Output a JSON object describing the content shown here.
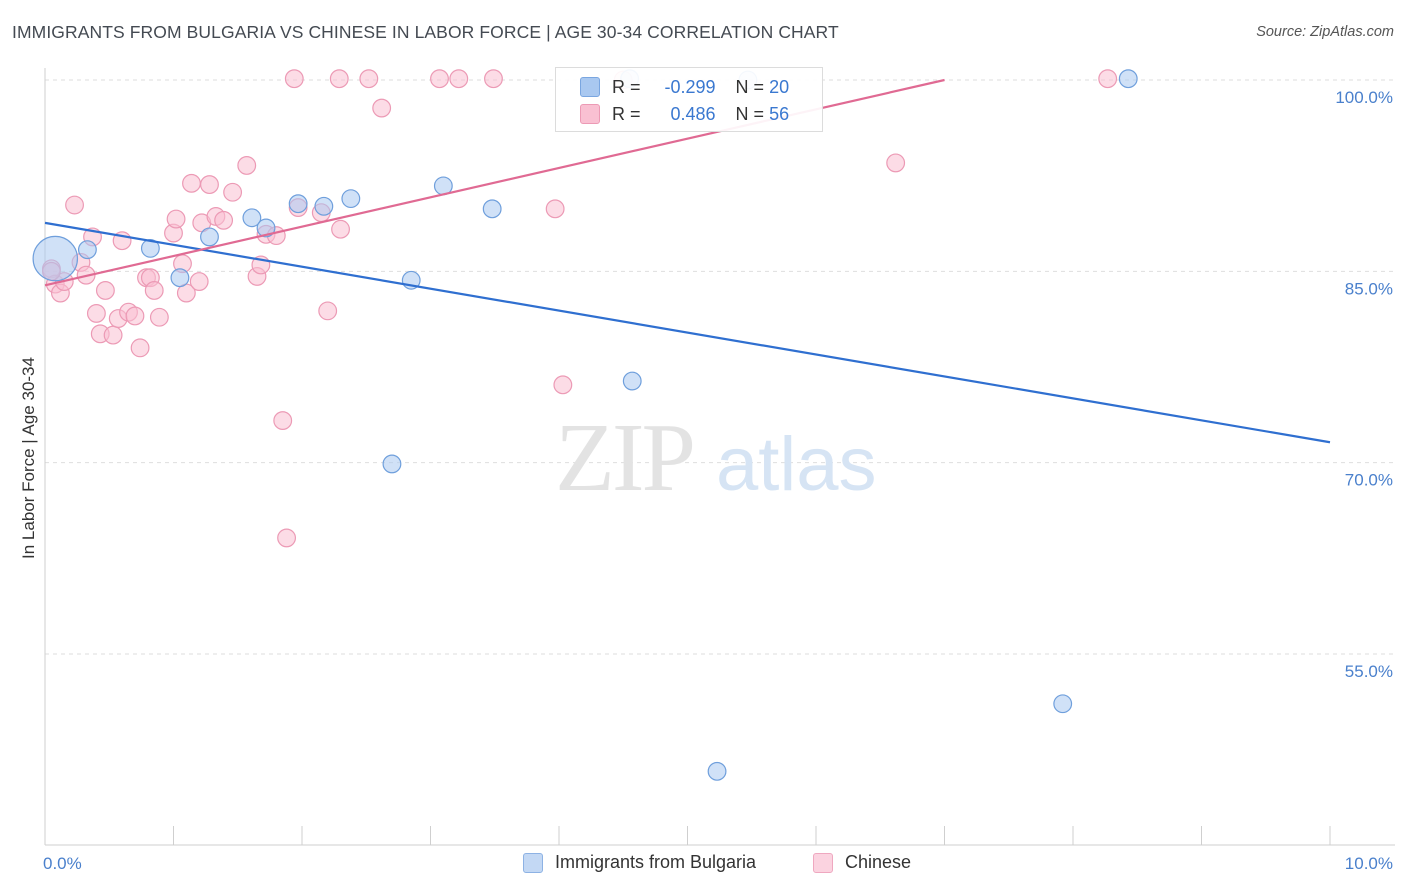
{
  "title": "IMMIGRANTS FROM BULGARIA VS CHINESE IN LABOR FORCE | AGE 30-34 CORRELATION CHART",
  "source": "Source: ZipAtlas.com",
  "watermark": {
    "zip": "ZIP",
    "atlas": "atlas"
  },
  "legend": {
    "rows": [
      {
        "r_label": "R =",
        "r_value": "-0.299",
        "n_label": "N =",
        "n_value": "20",
        "color": "#a9c8f0",
        "border": "#7aa6e0"
      },
      {
        "r_label": "R =",
        "r_value": "0.486",
        "n_label": "N =",
        "n_value": "56",
        "color": "#f9c0d2",
        "border": "#ec9ab5"
      }
    ]
  },
  "bottom_legend": [
    "Immigrants from Bulgaria",
    "Chinese"
  ],
  "chart_data": {
    "type": "scatter",
    "title": "IMMIGRANTS FROM BULGARIA VS CHINESE IN LABOR FORCE | AGE 30-34 CORRELATION CHART",
    "xlabel": "",
    "ylabel": "In Labor Force | Age 30-34",
    "xlim": [
      0,
      10
    ],
    "ylim": [
      40,
      101.5
    ],
    "x_tick_labels": [
      "0.0%",
      "10.0%"
    ],
    "y_ticks": [
      55,
      70,
      85,
      100
    ],
    "y_tick_labels": [
      "55.0%",
      "70.0%",
      "85.0%",
      "100.0%"
    ],
    "series": [
      {
        "name": "Immigrants from Bulgaria",
        "color": "#a9c8f0",
        "stroke": "#6f9fdc",
        "trend_color": "#2f6fd0",
        "trend": {
          "x0": 0,
          "y0": 88.8,
          "x1": 10,
          "y1": 71.6
        },
        "points": [
          [
            0.08,
            86.0,
            26
          ],
          [
            0.33,
            86.7,
            10
          ],
          [
            0.82,
            86.8,
            10
          ],
          [
            1.05,
            84.5,
            10
          ],
          [
            1.28,
            87.7,
            10
          ],
          [
            1.61,
            89.2,
            10
          ],
          [
            1.72,
            88.4,
            10
          ],
          [
            1.97,
            90.3,
            10
          ],
          [
            2.17,
            90.1,
            10
          ],
          [
            2.38,
            90.7,
            10
          ],
          [
            2.7,
            69.9,
            10
          ],
          [
            2.85,
            84.3,
            10
          ],
          [
            3.1,
            91.7,
            10
          ],
          [
            3.48,
            89.9,
            10
          ],
          [
            4.55,
            100.1,
            10
          ],
          [
            4.57,
            76.4,
            10
          ],
          [
            5.23,
            45.8,
            10
          ],
          [
            5.47,
            100.0,
            10
          ],
          [
            7.92,
            51.1,
            10
          ],
          [
            8.43,
            100.1,
            10
          ]
        ]
      },
      {
        "name": "Chinese",
        "color": "#f9c0d2",
        "stroke": "#ec9ab5",
        "trend_color": "#e06a93",
        "trend": {
          "x0": 0,
          "y0": 83.9,
          "x1": 7.0,
          "y1": 100.0
        },
        "points": [
          [
            0.05,
            85.2,
            10
          ],
          [
            0.08,
            84.0,
            10
          ],
          [
            0.12,
            83.3,
            10
          ],
          [
            0.15,
            84.2,
            10
          ],
          [
            0.23,
            90.2,
            10
          ],
          [
            0.28,
            85.7,
            10
          ],
          [
            0.32,
            84.7,
            10
          ],
          [
            0.37,
            87.7,
            10
          ],
          [
            0.4,
            81.7,
            10
          ],
          [
            0.43,
            80.1,
            10
          ],
          [
            0.47,
            83.5,
            10
          ],
          [
            0.53,
            80.0,
            10
          ],
          [
            0.57,
            81.3,
            10
          ],
          [
            0.6,
            87.4,
            10
          ],
          [
            0.65,
            81.8,
            10
          ],
          [
            0.7,
            81.5,
            10
          ],
          [
            0.74,
            79.0,
            10
          ],
          [
            0.79,
            84.5,
            10
          ],
          [
            0.82,
            84.5,
            10
          ],
          [
            0.85,
            83.5,
            10
          ],
          [
            0.89,
            81.4,
            10
          ],
          [
            1.0,
            88.0,
            10
          ],
          [
            1.02,
            89.1,
            10
          ],
          [
            1.07,
            85.6,
            10
          ],
          [
            1.1,
            83.3,
            10
          ],
          [
            1.14,
            91.9,
            10
          ],
          [
            1.2,
            84.2,
            10
          ],
          [
            1.22,
            88.8,
            10
          ],
          [
            1.28,
            91.8,
            10
          ],
          [
            1.33,
            89.3,
            10
          ],
          [
            1.39,
            89.0,
            10
          ],
          [
            1.46,
            91.2,
            10
          ],
          [
            1.57,
            93.3,
            10
          ],
          [
            1.65,
            84.6,
            10
          ],
          [
            1.68,
            85.5,
            10
          ],
          [
            1.72,
            87.9,
            10
          ],
          [
            1.8,
            87.8,
            10
          ],
          [
            1.85,
            73.3,
            10
          ],
          [
            1.88,
            64.1,
            10
          ],
          [
            1.94,
            100.1,
            10
          ],
          [
            1.97,
            90.0,
            10
          ],
          [
            2.15,
            89.6,
            10
          ],
          [
            2.2,
            81.9,
            10
          ],
          [
            2.29,
            100.1,
            10
          ],
          [
            2.3,
            88.3,
            10
          ],
          [
            2.52,
            100.1,
            10
          ],
          [
            2.62,
            97.8,
            10
          ],
          [
            3.07,
            100.1,
            10
          ],
          [
            3.22,
            100.1,
            10
          ],
          [
            3.49,
            100.1,
            10
          ],
          [
            3.97,
            89.9,
            10
          ],
          [
            4.03,
            76.1,
            10
          ],
          [
            4.5,
            100.0,
            10
          ],
          [
            6.62,
            93.5,
            10
          ],
          [
            8.27,
            100.1,
            10
          ],
          [
            0.05,
            85.0,
            10
          ]
        ]
      }
    ]
  }
}
